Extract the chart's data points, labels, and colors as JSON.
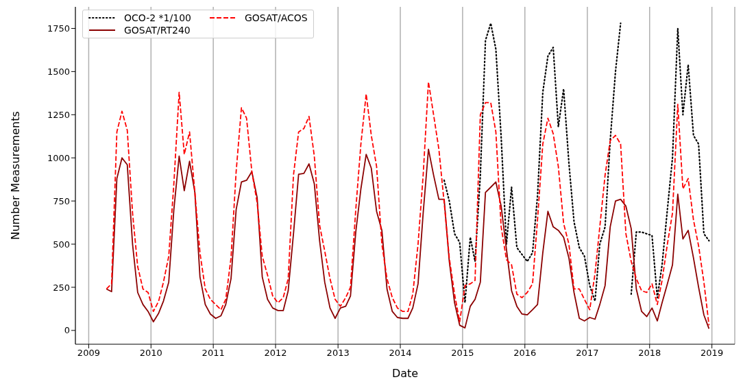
{
  "chart_data": {
    "type": "line",
    "xlabel": "Date",
    "ylabel": "Number Measurements",
    "x": [
      "2009-04-15",
      "2009-05-15",
      "2009-06-15",
      "2009-07-15",
      "2009-08-15",
      "2009-09-15",
      "2009-10-15",
      "2009-11-15",
      "2009-12-15",
      "2010-01-15",
      "2010-02-15",
      "2010-03-15",
      "2010-04-15",
      "2010-05-15",
      "2010-06-15",
      "2010-07-15",
      "2010-08-15",
      "2010-09-15",
      "2010-10-15",
      "2010-11-15",
      "2010-12-15",
      "2011-01-15",
      "2011-02-15",
      "2011-03-15",
      "2011-04-15",
      "2011-05-15",
      "2011-06-15",
      "2011-07-15",
      "2011-08-15",
      "2011-09-15",
      "2011-10-15",
      "2011-11-15",
      "2011-12-15",
      "2012-01-15",
      "2012-02-15",
      "2012-03-15",
      "2012-04-15",
      "2012-05-15",
      "2012-06-15",
      "2012-07-15",
      "2012-08-15",
      "2012-09-15",
      "2012-10-15",
      "2012-11-15",
      "2012-12-15",
      "2013-01-15",
      "2013-02-15",
      "2013-03-15",
      "2013-04-15",
      "2013-05-15",
      "2013-06-15",
      "2013-07-15",
      "2013-08-15",
      "2013-09-15",
      "2013-10-15",
      "2013-11-15",
      "2013-12-15",
      "2014-01-15",
      "2014-02-15",
      "2014-03-15",
      "2014-04-15",
      "2014-05-15",
      "2014-06-15",
      "2014-07-15",
      "2014-08-15",
      "2014-09-15",
      "2014-10-15",
      "2014-11-15",
      "2014-12-15",
      "2015-01-15",
      "2015-02-15",
      "2015-03-15",
      "2015-04-15",
      "2015-05-15",
      "2015-06-15",
      "2015-07-15",
      "2015-08-15",
      "2015-09-15",
      "2015-10-15",
      "2015-11-15",
      "2015-12-15",
      "2016-01-15",
      "2016-02-15",
      "2016-03-15",
      "2016-04-15",
      "2016-05-15",
      "2016-06-15",
      "2016-07-15",
      "2016-08-15",
      "2016-09-15",
      "2016-10-15",
      "2016-11-15",
      "2016-12-15",
      "2017-01-15",
      "2017-02-15",
      "2017-03-15",
      "2017-04-15",
      "2017-05-15",
      "2017-06-15",
      "2017-07-15",
      "2017-08-15",
      "2017-09-15",
      "2017-10-15",
      "2017-11-15",
      "2017-12-15",
      "2018-01-15",
      "2018-02-15",
      "2018-03-15",
      "2018-04-15",
      "2018-05-15",
      "2018-06-15",
      "2018-07-15",
      "2018-08-15",
      "2018-09-15",
      "2018-10-15",
      "2018-11-15",
      "2018-12-15"
    ],
    "series": [
      {
        "name": "OCO-2 *1/100",
        "color": "#000000",
        "line_style": "dotted",
        "values": [
          null,
          null,
          null,
          null,
          null,
          null,
          null,
          null,
          null,
          null,
          null,
          null,
          null,
          null,
          null,
          null,
          null,
          null,
          null,
          null,
          null,
          null,
          null,
          null,
          null,
          null,
          null,
          null,
          null,
          null,
          null,
          null,
          null,
          null,
          null,
          null,
          null,
          null,
          null,
          null,
          null,
          null,
          null,
          null,
          null,
          null,
          null,
          null,
          null,
          null,
          null,
          null,
          null,
          null,
          null,
          null,
          null,
          null,
          null,
          null,
          null,
          null,
          null,
          null,
          null,
          870,
          750,
          560,
          510,
          160,
          540,
          400,
          900,
          1680,
          1780,
          1630,
          1120,
          500,
          830,
          480,
          440,
          400,
          450,
          780,
          1380,
          1590,
          1640,
          1180,
          1400,
          970,
          630,
          480,
          430,
          260,
          170,
          500,
          600,
          1100,
          1500,
          1780,
          null,
          210,
          570,
          570,
          560,
          550,
          190,
          380,
          700,
          1000,
          1750,
          1250,
          1540,
          1130,
          1080,
          560,
          520
        ]
      },
      {
        "name": "GOSAT/RT240",
        "color": "#8b0000",
        "line_style": "solid",
        "values": [
          240,
          225,
          880,
          1000,
          960,
          500,
          220,
          150,
          110,
          50,
          100,
          170,
          280,
          700,
          1010,
          810,
          980,
          800,
          310,
          150,
          95,
          70,
          85,
          150,
          300,
          700,
          860,
          870,
          920,
          770,
          310,
          180,
          130,
          115,
          115,
          230,
          560,
          905,
          910,
          965,
          850,
          520,
          280,
          130,
          70,
          130,
          140,
          200,
          570,
          820,
          1020,
          940,
          690,
          580,
          240,
          110,
          75,
          70,
          70,
          130,
          270,
          680,
          1050,
          900,
          760,
          760,
          400,
          160,
          30,
          15,
          140,
          180,
          280,
          800,
          830,
          860,
          720,
          470,
          230,
          140,
          95,
          90,
          120,
          150,
          450,
          690,
          600,
          580,
          540,
          420,
          220,
          70,
          55,
          75,
          65,
          150,
          260,
          600,
          750,
          760,
          720,
          590,
          240,
          110,
          80,
          130,
          55,
          160,
          270,
          380,
          790,
          530,
          580,
          420,
          250,
          90,
          10
        ]
      },
      {
        "name": "GOSAT/ACOS",
        "color": "#ff0000",
        "line_style": "dashed",
        "values": [
          240,
          270,
          1150,
          1270,
          1160,
          680,
          370,
          240,
          220,
          110,
          170,
          280,
          430,
          850,
          1380,
          1020,
          1150,
          800,
          450,
          240,
          180,
          150,
          120,
          180,
          420,
          920,
          1290,
          1230,
          920,
          740,
          430,
          320,
          200,
          160,
          190,
          300,
          900,
          1150,
          1170,
          1240,
          1010,
          610,
          460,
          300,
          180,
          140,
          190,
          250,
          700,
          1080,
          1370,
          1130,
          950,
          500,
          300,
          190,
          130,
          110,
          110,
          210,
          500,
          900,
          1440,
          1250,
          1050,
          740,
          420,
          210,
          50,
          260,
          270,
          290,
          1250,
          1320,
          1320,
          1150,
          600,
          410,
          380,
          210,
          190,
          220,
          270,
          640,
          1080,
          1230,
          1140,
          950,
          620,
          500,
          240,
          240,
          180,
          120,
          330,
          600,
          900,
          1100,
          1130,
          1080,
          560,
          400,
          300,
          230,
          220,
          270,
          150,
          290,
          500,
          680,
          1310,
          820,
          880,
          640,
          490,
          280,
          30
        ]
      }
    ],
    "xlim": [
      "2008-10-15",
      "2019-05-15"
    ],
    "xticks": [
      "2009",
      "2010",
      "2011",
      "2012",
      "2013",
      "2014",
      "2015",
      "2016",
      "2017",
      "2018",
      "2019"
    ],
    "ylim": [
      -80,
      1875
    ],
    "yticks": [
      0,
      250,
      500,
      750,
      1000,
      1250,
      1500,
      1750
    ],
    "grid": "x",
    "legend": "top left"
  }
}
